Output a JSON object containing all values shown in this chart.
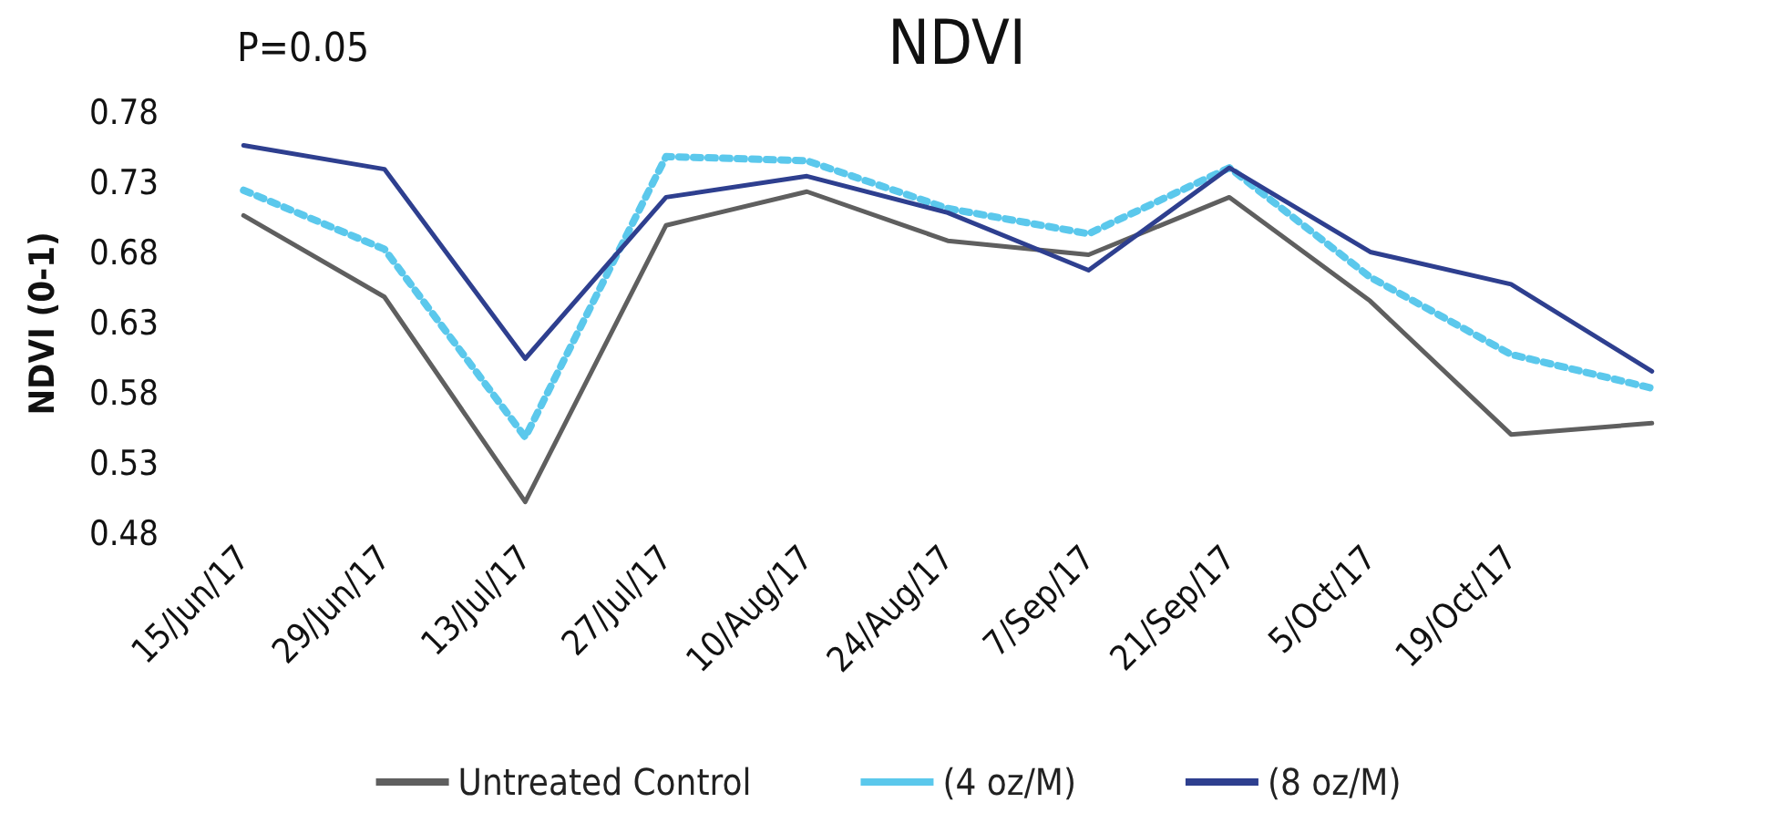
{
  "chart_data": {
    "type": "line",
    "title": "NDVI",
    "ylabel": "NDVI (0-1)",
    "annotations": [
      "P=0.05"
    ],
    "categories": [
      "15/Jun/17",
      "29/Jun/17",
      "13/Jul/17",
      "27/Jul/17",
      "10/Aug/17",
      "24/Aug/17",
      "7/Sep/17",
      "21/Sep/17",
      "5/Oct/17",
      "19/Oct/17",
      null
    ],
    "series": [
      {
        "name": "Untreated Control",
        "color": "#5f5f5f",
        "line_style": "solid",
        "values": [
          0.707,
          0.649,
          0.503,
          0.7,
          0.724,
          0.689,
          0.679,
          0.72,
          0.646,
          0.551,
          0.559
        ]
      },
      {
        "name": "(4 oz/M)",
        "color": "#5bc8ec",
        "line_style": "dotted",
        "values": [
          0.725,
          0.683,
          0.549,
          0.749,
          0.746,
          0.712,
          0.694,
          0.741,
          0.663,
          0.608,
          0.584
        ]
      },
      {
        "name": "(8 oz/M)",
        "color": "#2e3f8f",
        "line_style": "solid",
        "values": [
          0.757,
          0.74,
          0.605,
          0.72,
          0.735,
          0.709,
          0.668,
          0.741,
          0.681,
          0.658,
          0.596
        ]
      }
    ],
    "ylim": [
      0.48,
      0.78
    ],
    "yticks": [
      0.48,
      0.53,
      0.58,
      0.63,
      0.68,
      0.73,
      0.78
    ],
    "grid": false,
    "legend": "bottom",
    "marker": "none"
  }
}
